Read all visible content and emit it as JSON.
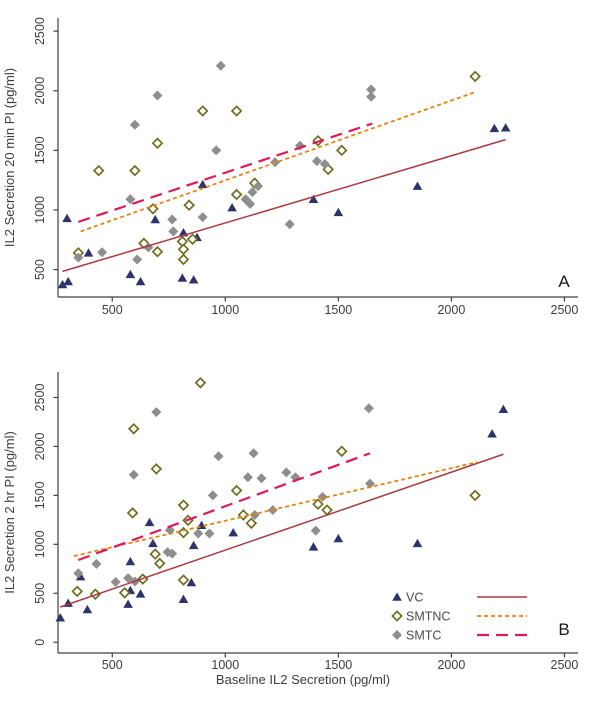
{
  "figure": {
    "background": "#ffffff",
    "axis_color": "#404040",
    "text_color": "#3d3d3d",
    "panel_letters": [
      "A",
      "B"
    ],
    "xlabel": "Baseline IL2 Secretion (pg/ml)",
    "legend": {
      "position": "bottom-right-inside-panel-B",
      "entries": [
        {
          "label": "VC",
          "marker": "triangle",
          "marker_color": "#2f336b",
          "line_style": "solid",
          "line_color": "#a93a40"
        },
        {
          "label": "SMTNC",
          "marker": "open-diamond",
          "marker_color": "#6d6d1d",
          "line_style": "short-dash",
          "line_color": "#e8820f"
        },
        {
          "label": "SMTC",
          "marker": "diamond",
          "marker_color": "#8e8e8e",
          "line_style": "long-dash",
          "line_color": "#e0195c"
        }
      ]
    }
  },
  "chart_data": [
    {
      "type": "scatter",
      "panel_label": "A",
      "ylabel": "IL2 Secretion 20 min PI (pg/ml)",
      "xlabel": null,
      "xlim": [
        260,
        2560
      ],
      "ylim": [
        270,
        2610
      ],
      "x_ticks": [
        500,
        1000,
        1500,
        2000,
        2500
      ],
      "y_ticks": [
        500,
        1000,
        1500,
        2000,
        2500
      ],
      "grid": false,
      "series": [
        {
          "name": "VC",
          "marker": "triangle",
          "color": "#2f336b",
          "points": [
            [
              280,
              375
            ],
            [
              305,
              400
            ],
            [
              300,
              930
            ],
            [
              395,
              640
            ],
            [
              580,
              460
            ],
            [
              625,
              400
            ],
            [
              690,
              920
            ],
            [
              815,
              810
            ],
            [
              875,
              770
            ],
            [
              810,
              430
            ],
            [
              860,
              415
            ],
            [
              900,
              1215
            ],
            [
              1030,
              1020
            ],
            [
              1390,
              1090
            ],
            [
              1500,
              980
            ],
            [
              1850,
              1200
            ],
            [
              2190,
              1685
            ],
            [
              2240,
              1690
            ]
          ]
        },
        {
          "name": "SMTNC",
          "marker": "open-diamond",
          "color": "#6d6d1d",
          "points": [
            [
              350,
              640
            ],
            [
              440,
              1330
            ],
            [
              600,
              1330
            ],
            [
              640,
              720
            ],
            [
              680,
              1010
            ],
            [
              700,
              650
            ],
            [
              700,
              1560
            ],
            [
              810,
              735
            ],
            [
              815,
              670
            ],
            [
              815,
              585
            ],
            [
              840,
              1040
            ],
            [
              855,
              755
            ],
            [
              900,
              1830
            ],
            [
              1050,
              1830
            ],
            [
              1050,
              1130
            ],
            [
              1130,
              1225
            ],
            [
              1410,
              1580
            ],
            [
              1455,
              1340
            ],
            [
              1515,
              1500
            ],
            [
              2105,
              2120
            ]
          ]
        },
        {
          "name": "SMTC",
          "marker": "diamond",
          "color": "#8e8e8e",
          "points": [
            [
              350,
              600
            ],
            [
              455,
              645
            ],
            [
              580,
              1090
            ],
            [
              600,
              1715
            ],
            [
              610,
              585
            ],
            [
              660,
              685
            ],
            [
              700,
              1960
            ],
            [
              765,
              920
            ],
            [
              770,
              820
            ],
            [
              900,
              940
            ],
            [
              960,
              1500
            ],
            [
              980,
              2210
            ],
            [
              1090,
              1090
            ],
            [
              1110,
              1050
            ],
            [
              1120,
              1150
            ],
            [
              1145,
              1200
            ],
            [
              1220,
              1400
            ],
            [
              1285,
              880
            ],
            [
              1330,
              1540
            ],
            [
              1405,
              1410
            ],
            [
              1440,
              1385
            ],
            [
              1645,
              2010
            ],
            [
              1645,
              1950
            ]
          ]
        }
      ],
      "trend_lines": [
        {
          "series": "VC",
          "style": "solid",
          "color": "#a93a40",
          "x1": 280,
          "y1": 485,
          "x2": 2240,
          "y2": 1590
        },
        {
          "series": "SMTNC",
          "style": "short-dash",
          "color": "#e8820f",
          "x1": 360,
          "y1": 820,
          "x2": 2100,
          "y2": 1985
        },
        {
          "series": "SMTC",
          "style": "long-dash",
          "color": "#e0195c",
          "x1": 350,
          "y1": 900,
          "x2": 1650,
          "y2": 1725
        }
      ]
    },
    {
      "type": "scatter",
      "panel_label": "B",
      "ylabel": "IL2 Secretion 2 hr PI (pg/ml)",
      "xlabel": "Baseline IL2 Secretion (pg/ml)",
      "xlim": [
        260,
        2560
      ],
      "ylim": [
        -110,
        2760
      ],
      "x_ticks": [
        500,
        1000,
        1500,
        2000,
        2500
      ],
      "y_ticks": [
        0,
        500,
        1000,
        1500,
        2000,
        2500
      ],
      "grid": false,
      "series": [
        {
          "name": "VC",
          "marker": "triangle",
          "color": "#2f336b",
          "points": [
            [
              270,
              250
            ],
            [
              305,
              400
            ],
            [
              390,
              335
            ],
            [
              360,
              670
            ],
            [
              570,
              390
            ],
            [
              580,
              530
            ],
            [
              625,
              495
            ],
            [
              580,
              825
            ],
            [
              665,
              1225
            ],
            [
              680,
              1010
            ],
            [
              815,
              440
            ],
            [
              850,
              610
            ],
            [
              860,
              990
            ],
            [
              895,
              1195
            ],
            [
              1035,
              1120
            ],
            [
              1390,
              975
            ],
            [
              1500,
              1060
            ],
            [
              1850,
              1010
            ],
            [
              2180,
              2130
            ],
            [
              2230,
              2380
            ]
          ]
        },
        {
          "name": "SMTNC",
          "marker": "open-diamond",
          "color": "#6d6d1d",
          "points": [
            [
              345,
              520
            ],
            [
              425,
              490
            ],
            [
              555,
              505
            ],
            [
              590,
              1320
            ],
            [
              595,
              2180
            ],
            [
              635,
              645
            ],
            [
              690,
              900
            ],
            [
              695,
              1770
            ],
            [
              710,
              805
            ],
            [
              815,
              1400
            ],
            [
              815,
              1120
            ],
            [
              815,
              635
            ],
            [
              835,
              1245
            ],
            [
              890,
              2650
            ],
            [
              1050,
              1550
            ],
            [
              1080,
              1300
            ],
            [
              1115,
              1215
            ],
            [
              1410,
              1410
            ],
            [
              1450,
              1350
            ],
            [
              1515,
              1950
            ],
            [
              2105,
              1500
            ]
          ]
        },
        {
          "name": "SMTC",
          "marker": "diamond",
          "color": "#8e8e8e",
          "points": [
            [
              350,
              705
            ],
            [
              430,
              800
            ],
            [
              515,
              615
            ],
            [
              570,
              655
            ],
            [
              600,
              620
            ],
            [
              595,
              1710
            ],
            [
              695,
              2350
            ],
            [
              745,
              920
            ],
            [
              765,
              905
            ],
            [
              755,
              1145
            ],
            [
              880,
              1110
            ],
            [
              930,
              1110
            ],
            [
              945,
              1500
            ],
            [
              970,
              1900
            ],
            [
              1100,
              1685
            ],
            [
              1125,
              1930
            ],
            [
              1130,
              1300
            ],
            [
              1160,
              1675
            ],
            [
              1210,
              1350
            ],
            [
              1270,
              1735
            ],
            [
              1310,
              1685
            ],
            [
              1400,
              1140
            ],
            [
              1430,
              1485
            ],
            [
              1635,
              2390
            ],
            [
              1640,
              1620
            ]
          ]
        }
      ],
      "trend_lines": [
        {
          "series": "VC",
          "style": "solid",
          "color": "#a93a40",
          "x1": 270,
          "y1": 360,
          "x2": 2230,
          "y2": 1920
        },
        {
          "series": "SMTNC",
          "style": "short-dash",
          "color": "#e8820f",
          "x1": 330,
          "y1": 880,
          "x2": 2115,
          "y2": 1840
        },
        {
          "series": "SMTC",
          "style": "long-dash",
          "color": "#e0195c",
          "x1": 350,
          "y1": 840,
          "x2": 1640,
          "y2": 1930
        }
      ]
    }
  ]
}
